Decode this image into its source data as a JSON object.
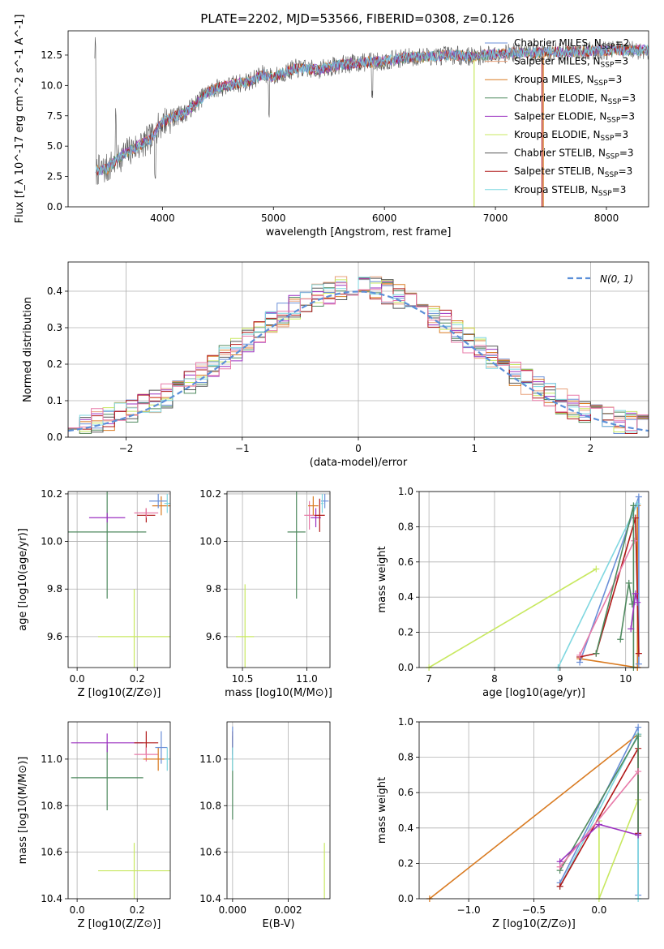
{
  "figure": {
    "title": "PLATE=2202, MJD=53566, FIBERID=0308, z=0.126"
  },
  "colors": {
    "Chabrier MILES": "#6a8fd8",
    "Salpeter MILES": "#e8a07a",
    "Kroupa MILES": "#d97b22",
    "Chabrier ELODIE": "#4f8a5f",
    "Salpeter ELODIE": "#9b30c0",
    "Kroupa ELODIE": "#c8e860",
    "Chabrier STELIB": "#555555",
    "Salpeter STELIB": "#b01818",
    "Kroupa STELIB": "#7fd7e0",
    "pink": "#e87aa8",
    "gaussian": "#5b8fd8"
  },
  "chart_data": [
    {
      "id": "spectrum",
      "type": "line",
      "title": "PLATE=2202, MJD=53566, FIBERID=0308, z=0.126",
      "xlabel": "wavelength [Angstrom, rest frame]",
      "ylabel": "Flux [f_λ 10^-17 erg cm^-2 s^-1 A^-1]",
      "xlim": [
        3150,
        8380
      ],
      "ylim": [
        0,
        14.5
      ],
      "xticks": [
        4000,
        5000,
        6000,
        7000,
        8000
      ],
      "yticks": [
        "0.0",
        "2.5",
        "5.0",
        "7.5",
        "10.0",
        "12.5"
      ],
      "grid": false,
      "legend_position": "upper right",
      "legend": [
        {
          "label": "Chabrier MILES, N",
          "sub": "SSP",
          "suffix": "=2"
        },
        {
          "label": "Salpeter MILES, N",
          "sub": "SSP",
          "suffix": "=3"
        },
        {
          "label": "Kroupa MILES, N",
          "sub": "SSP",
          "suffix": "=3"
        },
        {
          "label": "Chabrier ELODIE, N",
          "sub": "SSP",
          "suffix": "=3"
        },
        {
          "label": "Salpeter ELODIE, N",
          "sub": "SSP",
          "suffix": "=3"
        },
        {
          "label": "Kroupa ELODIE, N",
          "sub": "SSP",
          "suffix": "=3"
        },
        {
          "label": "Chabrier STELIB, N",
          "sub": "SSP",
          "suffix": "=3"
        },
        {
          "label": "Salpeter STELIB, N",
          "sub": "SSP",
          "suffix": "=3"
        },
        {
          "label": "Kroupa STELIB, N",
          "sub": "SSP",
          "suffix": "=3"
        }
      ],
      "continuum": {
        "x": [
          3400,
          3500,
          3600,
          3700,
          3800,
          3900,
          4000,
          4100,
          4200,
          4300,
          4400,
          4500,
          4600,
          4700,
          4800,
          4900,
          5000,
          5200,
          5400,
          5600,
          5800,
          6000,
          6200,
          6400,
          6600,
          6800,
          7000,
          7200,
          7400,
          7600,
          7800,
          8000,
          8200,
          8380
        ],
        "y": [
          3.0,
          3.1,
          4.0,
          4.6,
          5.1,
          5.6,
          7.0,
          7.4,
          7.7,
          8.5,
          9.4,
          9.8,
          10.0,
          10.2,
          10.4,
          10.9,
          10.7,
          11.4,
          11.3,
          11.7,
          11.9,
          12.0,
          12.3,
          12.4,
          12.5,
          12.4,
          12.6,
          12.7,
          12.7,
          12.8,
          12.8,
          12.9,
          12.9,
          12.9
        ]
      }
    },
    {
      "id": "residual-hist",
      "type": "area",
      "xlabel": "(data-model)/error",
      "ylabel": "Normed distribution",
      "xlim": [
        -2.5,
        2.5
      ],
      "ylim": [
        0,
        0.48
      ],
      "xticks": [
        "−2",
        "−1",
        "0",
        "1",
        "2"
      ],
      "yticks": [
        "0.0",
        "0.1",
        "0.2",
        "0.3",
        "0.4"
      ],
      "grid": true,
      "legend_position": "upper right",
      "gaussian_label": "N(0, 1)"
    },
    {
      "id": "age-vs-Z",
      "type": "scatter",
      "xlabel": "Z [log10(Z/Z⊙)]",
      "ylabel": "age [log10(age/yr)]",
      "xlim": [
        -0.03,
        0.31
      ],
      "ylim": [
        9.47,
        10.21
      ],
      "xticks": [
        "0.0",
        "0.2"
      ],
      "yticks": [
        "9.6",
        "9.8",
        "10.0",
        "10.2"
      ],
      "grid": true,
      "points": [
        {
          "c": "Kroupa ELODIE",
          "x": 0.19,
          "y": 9.6,
          "xerr": 0.12,
          "yerr": 0.2
        },
        {
          "c": "Chabrier ELODIE",
          "x": 0.1,
          "y": 10.04,
          "xerr": 0.13,
          "yerr": 0.28
        },
        {
          "c": "Salpeter ELODIE",
          "x": 0.1,
          "y": 10.1,
          "xerr": 0.06,
          "yerr": 0.02
        },
        {
          "c": "Salpeter STELIB",
          "x": 0.23,
          "y": 10.11,
          "xerr": 0.03,
          "yerr": 0.03
        },
        {
          "c": "pink",
          "x": 0.23,
          "y": 10.12,
          "xerr": 0.04,
          "yerr": 0.02
        },
        {
          "c": "Kroupa MILES",
          "x": 0.28,
          "y": 10.15,
          "xerr": 0.03,
          "yerr": 0.04
        },
        {
          "c": "Chabrier MILES",
          "x": 0.27,
          "y": 10.17,
          "xerr": 0.03,
          "yerr": 0.03
        },
        {
          "c": "Kroupa STELIB",
          "x": 0.3,
          "y": 10.16,
          "xerr": 0.01,
          "yerr": 0.04
        }
      ]
    },
    {
      "id": "age-vs-mass",
      "type": "scatter",
      "xlabel": "mass [log10(M/M⊙)]",
      "ylabel": "",
      "xlim": [
        10.38,
        11.18
      ],
      "ylim": [
        9.47,
        10.21
      ],
      "xticks": [
        "10.5",
        "11.0"
      ],
      "yticks": [
        "9.6",
        "9.8",
        "10.0",
        "10.2"
      ],
      "grid": true,
      "points": [
        {
          "c": "Kroupa ELODIE",
          "x": 10.52,
          "y": 9.6,
          "xerr": 0.07,
          "yerr": 0.22
        },
        {
          "c": "Chabrier ELODIE",
          "x": 10.92,
          "y": 10.04,
          "xerr": 0.07,
          "yerr": 0.28
        },
        {
          "c": "Salpeter ELODIE",
          "x": 11.07,
          "y": 10.1,
          "xerr": 0.04,
          "yerr": 0.04
        },
        {
          "c": "Salpeter STELIB",
          "x": 11.1,
          "y": 10.11,
          "xerr": 0.04,
          "yerr": 0.07
        },
        {
          "c": "pink",
          "x": 11.02,
          "y": 10.11,
          "xerr": 0.04,
          "yerr": 0.06
        },
        {
          "c": "Kroupa MILES",
          "x": 11.05,
          "y": 10.15,
          "xerr": 0.04,
          "yerr": 0.04
        },
        {
          "c": "Chabrier MILES",
          "x": 11.14,
          "y": 10.17,
          "xerr": 0.03,
          "yerr": 0.03
        },
        {
          "c": "Kroupa STELIB",
          "x": 11.12,
          "y": 10.16,
          "xerr": 0.01,
          "yerr": 0.04
        }
      ]
    },
    {
      "id": "weight-vs-age",
      "type": "line",
      "xlabel": "age [log10(age/yr)]",
      "ylabel": "mass weight",
      "xlim": [
        6.85,
        10.35
      ],
      "ylim": [
        0,
        1.0
      ],
      "xticks": [
        "7",
        "8",
        "9",
        "10"
      ],
      "yticks": [
        "0.0",
        "0.2",
        "0.4",
        "0.6",
        "0.8",
        "1.0"
      ],
      "grid": true,
      "series": [
        {
          "c": "Kroupa ELODIE",
          "x": [
            7.0,
            9.55
          ],
          "y": [
            0.0,
            0.56
          ]
        },
        {
          "c": "Kroupa MILES",
          "x": [
            9.3,
            10.18
          ],
          "y": [
            0.05,
            0.0
          ]
        },
        {
          "c": "Kroupa MILES",
          "x": [
            10.18,
            10.18
          ],
          "y": [
            0.0,
            0.92
          ]
        },
        {
          "c": "Chabrier MILES",
          "x": [
            9.3,
            10.2,
            10.2
          ],
          "y": [
            0.03,
            0.97,
            0.02
          ]
        },
        {
          "c": "Kroupa STELIB",
          "x": [
            8.97,
            10.18
          ],
          "y": [
            0.0,
            0.93
          ]
        },
        {
          "c": "Salpeter STELIB",
          "x": [
            9.3,
            9.55,
            10.15,
            10.2
          ],
          "y": [
            0.06,
            0.08,
            0.85,
            0.08
          ]
        },
        {
          "c": "pink",
          "x": [
            9.3,
            10.13
          ],
          "y": [
            0.07,
            0.72
          ]
        },
        {
          "c": "Chabrier ELODIE",
          "x": [
            9.55,
            10.12,
            10.12
          ],
          "y": [
            0.08,
            0.92,
            0.0
          ]
        },
        {
          "c": "Chabrier ELODIE",
          "x": [
            9.92,
            10.05,
            10.1
          ],
          "y": [
            0.16,
            0.48,
            0.36
          ]
        },
        {
          "c": "Salpeter ELODIE",
          "x": [
            10.08,
            10.15,
            10.18
          ],
          "y": [
            0.22,
            0.42,
            0.37
          ]
        }
      ]
    },
    {
      "id": "mass-vs-Z",
      "type": "scatter",
      "xlabel": "Z [log10(Z/Z⊙)]",
      "ylabel": "mass [log10(M/M⊙)]",
      "xlim": [
        -0.03,
        0.31
      ],
      "ylim": [
        10.4,
        11.16
      ],
      "xticks": [
        "0.0",
        "0.2"
      ],
      "yticks": [
        "10.4",
        "10.6",
        "10.8",
        "11.0"
      ],
      "grid": true,
      "points": [
        {
          "c": "Kroupa ELODIE",
          "x": 0.19,
          "y": 10.52,
          "xerr": 0.12,
          "yerr": 0.12
        },
        {
          "c": "Chabrier ELODIE",
          "x": 0.1,
          "y": 10.92,
          "xerr": 0.12,
          "yerr": 0.14
        },
        {
          "c": "Salpeter ELODIE",
          "x": 0.1,
          "y": 11.07,
          "xerr": 0.12,
          "yerr": 0.04
        },
        {
          "c": "Salpeter STELIB",
          "x": 0.23,
          "y": 11.07,
          "xerr": 0.04,
          "yerr": 0.05
        },
        {
          "c": "pink",
          "x": 0.23,
          "y": 11.02,
          "xerr": 0.04,
          "yerr": 0.03
        },
        {
          "c": "Kroupa MILES",
          "x": 0.27,
          "y": 11.0,
          "xerr": 0.05,
          "yerr": 0.05
        },
        {
          "c": "Chabrier MILES",
          "x": 0.28,
          "y": 11.05,
          "xerr": 0.02,
          "yerr": 0.07
        },
        {
          "c": "Kroupa STELIB",
          "x": 0.3,
          "y": 11.0,
          "xerr": 0.01,
          "yerr": 0.05
        }
      ]
    },
    {
      "id": "mass-vs-EBV",
      "type": "scatter",
      "xlabel": "E(B-V)",
      "ylabel": "",
      "xlim": [
        -0.0002,
        0.0035
      ],
      "ylim": [
        10.4,
        11.16
      ],
      "xticks": [
        "0.000",
        "0.002"
      ],
      "yticks": [
        "10.4",
        "10.6",
        "10.8",
        "11.0"
      ],
      "grid": true,
      "points": [
        {
          "c": "Kroupa ELODIE",
          "x": 0.0033,
          "y": 10.52,
          "xerr": 0,
          "yerr": 0.12
        },
        {
          "c": "Chabrier ELODIE",
          "x": 0.0,
          "y": 10.92,
          "xerr": 0,
          "yerr": 0.18
        },
        {
          "c": "Salpeter STELIB",
          "x": 0.0,
          "y": 11.07,
          "xerr": 0,
          "yerr": 0.05
        },
        {
          "c": "Chabrier MILES",
          "x": 0.0,
          "y": 11.07,
          "xerr": 0,
          "yerr": 0.07
        },
        {
          "c": "Kroupa STELIB",
          "x": 0.0,
          "y": 11.0,
          "xerr": 0,
          "yerr": 0.05
        }
      ]
    },
    {
      "id": "weight-vs-Z",
      "type": "line",
      "xlabel": "Z [log10(Z/Z⊙)]",
      "ylabel": "mass weight",
      "xlim": [
        -1.38,
        0.38
      ],
      "ylim": [
        0,
        1.0
      ],
      "xticks": [
        "−1.0",
        "−0.5",
        "0.0"
      ],
      "yticks": [
        "0.0",
        "0.2",
        "0.4",
        "0.6",
        "0.8",
        "1.0"
      ],
      "grid": true,
      "series": [
        {
          "c": "Kroupa MILES",
          "x": [
            -1.3,
            0.3
          ],
          "y": [
            0.0,
            0.93
          ]
        },
        {
          "c": "Kroupa ELODIE",
          "x": [
            0.0,
            0.0,
            0.3
          ],
          "y": [
            0.44,
            0.0,
            0.56
          ]
        },
        {
          "c": "Chabrier MILES",
          "x": [
            -0.3,
            0.3,
            0.3
          ],
          "y": [
            0.09,
            0.97,
            0.02
          ]
        },
        {
          "c": "Kroupa STELIB",
          "x": [
            -0.3,
            0.3,
            0.3
          ],
          "y": [
            0.07,
            0.93,
            0.0
          ]
        },
        {
          "c": "Salpeter STELIB",
          "x": [
            -0.3,
            0.3,
            0.3
          ],
          "y": [
            0.07,
            0.85,
            0.37
          ]
        },
        {
          "c": "Chabrier ELODIE",
          "x": [
            -0.3,
            0.3,
            0.3
          ],
          "y": [
            0.16,
            0.92,
            0.36
          ]
        },
        {
          "c": "Salpeter ELODIE",
          "x": [
            -0.3,
            0.0,
            0.3
          ],
          "y": [
            0.21,
            0.42,
            0.36
          ]
        },
        {
          "c": "pink",
          "x": [
            -0.3,
            0.3
          ],
          "y": [
            0.18,
            0.72
          ]
        }
      ]
    }
  ]
}
